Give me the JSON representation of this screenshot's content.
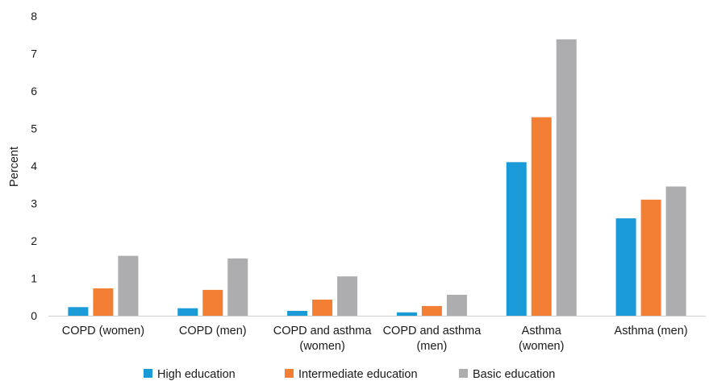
{
  "chart_data": {
    "type": "bar",
    "title": "",
    "xlabel": "",
    "ylabel": "Percent",
    "ylim": [
      0,
      8
    ],
    "yticks": [
      0,
      1,
      2,
      3,
      4,
      5,
      6,
      7,
      8
    ],
    "grid": false,
    "legend_position": "bottom",
    "categories": [
      [
        "COPD (women)"
      ],
      [
        "COPD (men)"
      ],
      [
        "COPD and asthma",
        "(women)"
      ],
      [
        "COPD and asthma",
        "(men)"
      ],
      [
        "Asthma",
        "(women)"
      ],
      [
        "Asthma (men)"
      ]
    ],
    "series": [
      {
        "name": "High education",
        "color": "#1a9ad6",
        "values": [
          0.23,
          0.2,
          0.13,
          0.09,
          4.1,
          2.6
        ]
      },
      {
        "name": "Intermediate education",
        "color": "#f27f33",
        "values": [
          0.73,
          0.69,
          0.43,
          0.26,
          5.3,
          3.1
        ]
      },
      {
        "name": "Basic education",
        "color": "#adadb0",
        "values": [
          1.6,
          1.53,
          1.05,
          0.56,
          7.38,
          3.45
        ]
      }
    ],
    "axis_color": "#d0d0d0"
  }
}
